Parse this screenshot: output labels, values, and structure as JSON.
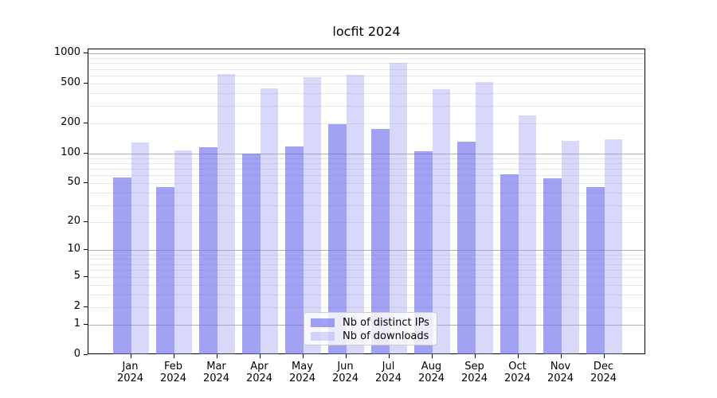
{
  "chart_data": {
    "type": "bar",
    "title": "locfit 2024",
    "year": "2024",
    "categories": [
      "Jan",
      "Feb",
      "Mar",
      "Apr",
      "May",
      "Jun",
      "Jul",
      "Aug",
      "Sep",
      "Oct",
      "Nov",
      "Dec"
    ],
    "series": [
      {
        "name": "Nb of distinct IPs",
        "color": "rgba(108,108,238,0.63)",
        "values": [
          57,
          46,
          115,
          100,
          117,
          196,
          176,
          105,
          131,
          62,
          56,
          46
        ]
      },
      {
        "name": "Nb of downloads",
        "color": "rgba(150,150,245,0.37)",
        "values": [
          128,
          107,
          618,
          448,
          575,
          615,
          803,
          440,
          521,
          240,
          133,
          138
        ]
      }
    ],
    "y_ticks": [
      0,
      1,
      2,
      5,
      10,
      20,
      50,
      100,
      200,
      500,
      1000
    ],
    "y_scale": "log10(1+x)",
    "ylim": [
      0,
      1095
    ],
    "grid": true,
    "legend_position": "bottom-center",
    "colors": {
      "major_gridline": "#b0b0b0",
      "minor_gridline": "#e7e7e7",
      "axis": "#000000",
      "background": "#ffffff"
    }
  }
}
